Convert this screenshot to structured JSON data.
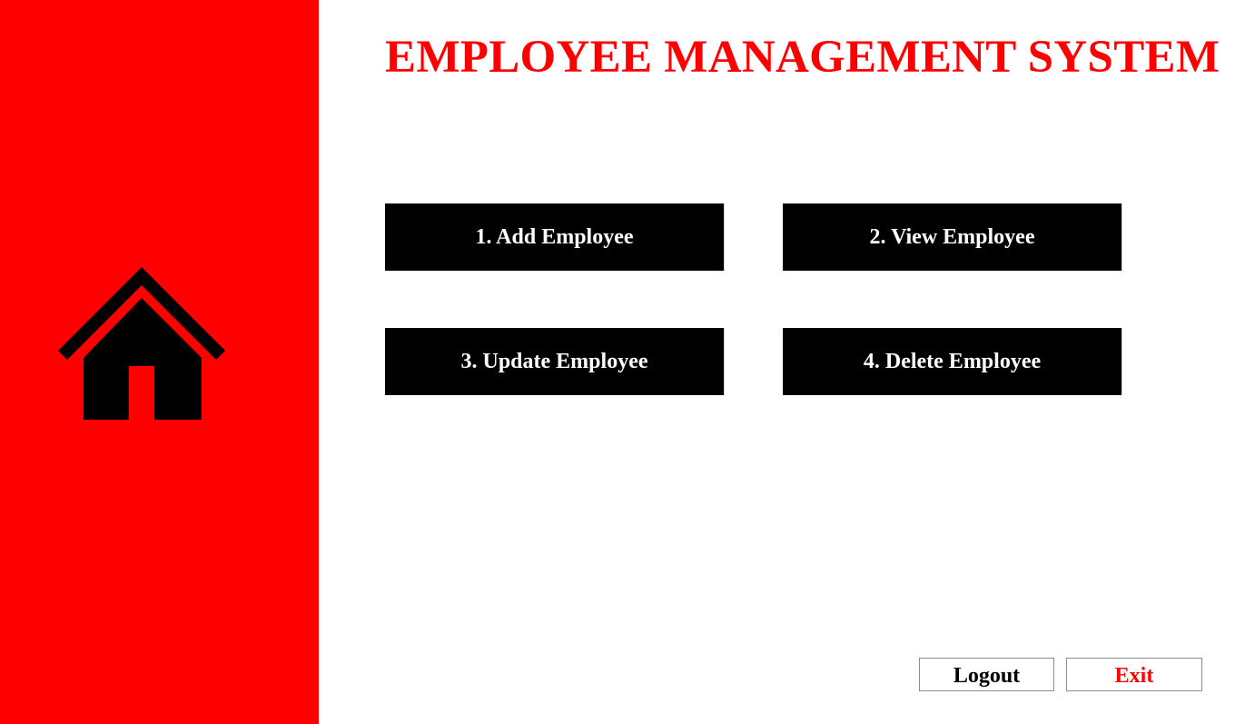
{
  "header": {
    "title": "EMPLOYEE MANAGEMENT SYSTEM"
  },
  "sidebar": {
    "icon": "home-icon",
    "background_color": "#ff0000"
  },
  "menu": {
    "add_label": "1. Add Employee",
    "view_label": "2. View Employee",
    "update_label": "3. Update Employee",
    "delete_label": "4. Delete Employee"
  },
  "footer": {
    "logout_label": "Logout",
    "exit_label": "Exit"
  },
  "colors": {
    "accent": "#ff0000",
    "button_bg": "#000000",
    "button_text": "#ffffff"
  }
}
